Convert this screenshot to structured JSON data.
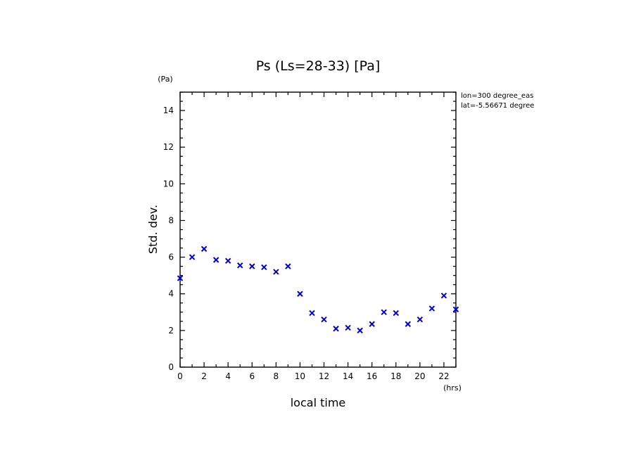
{
  "chart_data": {
    "type": "scatter",
    "title": "Ps (Ls=28-33) [Pa]",
    "xlabel": "local time",
    "ylabel": "Std. dev.",
    "x_unit": "(hrs)",
    "y_unit": "(Pa)",
    "xlim": [
      0,
      23
    ],
    "ylim": [
      0,
      15
    ],
    "x_ticks": [
      0,
      2,
      4,
      6,
      8,
      10,
      12,
      14,
      16,
      18,
      20,
      22
    ],
    "y_ticks": [
      0,
      2,
      4,
      6,
      8,
      10,
      12,
      14
    ],
    "annotations": [
      "lon=300 degree_eas",
      "lat=-5.56671 degree"
    ],
    "marker": "x",
    "marker_color": "#0000dd",
    "series": [
      {
        "x": [
          0,
          1,
          2,
          3,
          4,
          5,
          6,
          7,
          8,
          9,
          10,
          11,
          12,
          13,
          14,
          15,
          16,
          17,
          18,
          19,
          20,
          21,
          22,
          23
        ],
        "y": [
          4.85,
          6.0,
          6.45,
          5.85,
          5.8,
          5.55,
          5.5,
          5.45,
          5.2,
          5.5,
          4.0,
          2.95,
          2.6,
          2.1,
          2.15,
          2.0,
          2.35,
          3.0,
          2.95,
          2.35,
          2.6,
          3.2,
          3.9,
          3.15
        ]
      }
    ]
  }
}
